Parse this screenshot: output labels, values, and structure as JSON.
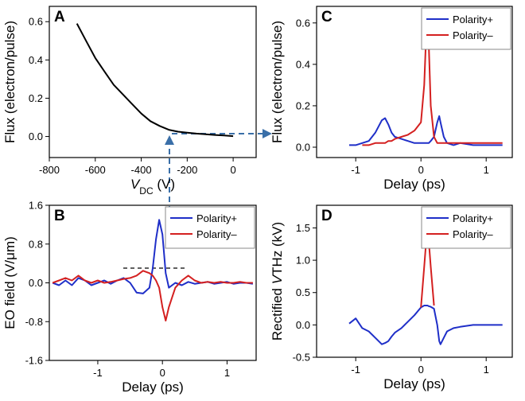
{
  "chart_data": [
    {
      "type": "line",
      "panel_label": "A",
      "ylabel": "Flux (electron/pulse)",
      "xlabel": {
        "italic": "V",
        "sub": "DC",
        "rest": " (V)"
      },
      "x": [
        -680,
        -640,
        -600,
        -560,
        -520,
        -480,
        -440,
        -400,
        -360,
        -320,
        -280,
        -240,
        -200,
        -160,
        -120,
        -80,
        -40,
        0
      ],
      "series": [
        {
          "color": "#000000",
          "values": [
            0.59,
            0.5,
            0.41,
            0.34,
            0.27,
            0.22,
            0.17,
            0.12,
            0.08,
            0.055,
            0.035,
            0.025,
            0.02,
            0.015,
            0.012,
            0.008,
            0.005,
            0.002
          ]
        }
      ],
      "xlim": [
        -800,
        100
      ],
      "ylim": [
        -0.11,
        0.68
      ],
      "xticks": [
        -800,
        -600,
        -400,
        -200,
        0
      ],
      "yticks": [
        {
          "value": 0,
          "label": "0.0"
        },
        0.2,
        0.4,
        0.6
      ]
    },
    {
      "type": "line",
      "panel_label": "B",
      "ylabel": "EO field (V/μm)",
      "xlabel": "Delay (ps)",
      "x": [
        -1.7,
        -1.6,
        -1.5,
        -1.4,
        -1.3,
        -1.2,
        -1.1,
        -1.0,
        -0.9,
        -0.8,
        -0.7,
        -0.6,
        -0.5,
        -0.4,
        -0.3,
        -0.2,
        -0.15,
        -0.1,
        -0.05,
        0,
        0.05,
        0.1,
        0.2,
        0.3,
        0.4,
        0.5,
        0.6,
        0.7,
        0.8,
        0.9,
        1.0,
        1.1,
        1.2,
        1.3,
        1.4
      ],
      "series": [
        {
          "name": "Polarity+",
          "color": "#1f2fc8",
          "values": [
            0.0,
            -0.05,
            0.05,
            -0.05,
            0.1,
            0.05,
            -0.05,
            0.0,
            0.05,
            -0.02,
            0.05,
            0.1,
            0.0,
            -0.2,
            -0.22,
            -0.1,
            0.3,
            0.9,
            1.3,
            1.0,
            0.2,
            -0.1,
            0.0,
            -0.05,
            0.02,
            -0.02,
            0.0,
            0.02,
            -0.02,
            0.0,
            0.02,
            -0.02,
            0.0,
            0.0,
            -0.02
          ]
        },
        {
          "name": "Polarity–",
          "color": "#d42020",
          "values": [
            0.0,
            0.05,
            0.1,
            0.05,
            0.15,
            0.05,
            0.0,
            0.05,
            0.0,
            0.02,
            0.05,
            0.08,
            0.1,
            0.15,
            0.25,
            0.2,
            0.15,
            0.05,
            -0.1,
            -0.5,
            -0.78,
            -0.5,
            -0.1,
            0.05,
            0.15,
            0.05,
            0.0,
            0.02,
            0.0,
            0.02,
            0.0,
            0.0,
            0.02,
            0.0,
            0.0
          ]
        }
      ],
      "xlim": [
        -1.75,
        1.45
      ],
      "ylim": [
        -1.6,
        1.6
      ],
      "xticks": [
        -1,
        0,
        1
      ],
      "yticks": [
        -1.6,
        -0.8,
        {
          "value": 0,
          "label": "0.0"
        },
        0.8,
        1.6
      ],
      "legend": "upper right"
    },
    {
      "type": "line",
      "panel_label": "C",
      "ylabel": "Flux (electron/pulse)",
      "xlabel": "Delay (ps)",
      "x": [
        -1.1,
        -1.0,
        -0.9,
        -0.8,
        -0.7,
        -0.6,
        -0.55,
        -0.5,
        -0.45,
        -0.4,
        -0.3,
        -0.2,
        -0.1,
        0,
        0.05,
        0.08,
        0.1,
        0.12,
        0.15,
        0.2,
        0.25,
        0.28,
        0.3,
        0.35,
        0.4,
        0.5,
        0.6,
        0.8,
        1.0,
        1.25
      ],
      "series": [
        {
          "name": "Polarity+",
          "color": "#1f2fc8",
          "values": [
            0.01,
            0.01,
            0.02,
            0.03,
            0.07,
            0.13,
            0.14,
            0.11,
            0.07,
            0.05,
            0.04,
            0.03,
            0.02,
            0.02,
            0.02,
            0.02,
            0.02,
            0.02,
            0.03,
            0.05,
            0.12,
            0.15,
            0.12,
            0.05,
            0.02,
            0.01,
            0.02,
            0.01,
            0.01,
            0.01
          ]
        },
        {
          "name": "Polarity–",
          "color": "#d42020",
          "values": [
            null,
            null,
            0.01,
            0.01,
            0.02,
            0.02,
            0.02,
            0.03,
            0.03,
            0.04,
            0.05,
            0.06,
            0.08,
            0.12,
            0.3,
            0.55,
            0.6,
            0.5,
            0.2,
            0.05,
            0.02,
            0.02,
            0.02,
            0.02,
            0.02,
            0.02,
            0.02,
            0.02,
            0.02,
            0.02
          ]
        }
      ],
      "xlim": [
        -1.6,
        1.4
      ],
      "ylim": [
        -0.05,
        0.68
      ],
      "xticks": [
        -1,
        0,
        1
      ],
      "yticks": [
        {
          "value": 0,
          "label": "0.0"
        },
        0.2,
        0.4,
        0.6
      ],
      "legend": "upper right"
    },
    {
      "type": "line",
      "panel_label": "D",
      "ylabel": {
        "text": "Rectified ",
        "italic": "V",
        "rest": "THz (kV)"
      },
      "xlabel": "Delay (ps)",
      "x": [
        -1.1,
        -1.0,
        -0.9,
        -0.8,
        -0.7,
        -0.6,
        -0.55,
        -0.5,
        -0.45,
        -0.4,
        -0.3,
        -0.2,
        -0.1,
        0,
        0.05,
        0.08,
        0.1,
        0.12,
        0.15,
        0.2,
        0.25,
        0.28,
        0.3,
        0.35,
        0.4,
        0.5,
        0.6,
        0.8,
        1.0,
        1.25
      ],
      "series": [
        {
          "name": "Polarity+",
          "color": "#1f2fc8",
          "values": [
            0.02,
            0.1,
            -0.05,
            -0.1,
            -0.2,
            -0.3,
            -0.28,
            -0.25,
            -0.18,
            -0.12,
            -0.05,
            0.05,
            0.15,
            0.27,
            0.3,
            0.3,
            0.3,
            0.29,
            0.28,
            0.25,
            0.0,
            -0.25,
            -0.3,
            -0.2,
            -0.1,
            -0.05,
            -0.03,
            0.0,
            0.0,
            0.0
          ]
        },
        {
          "name": "Polarity–",
          "color": "#d42020",
          "values": [
            null,
            null,
            null,
            null,
            null,
            null,
            null,
            null,
            null,
            null,
            null,
            null,
            null,
            0.27,
            0.9,
            1.3,
            1.45,
            1.3,
            0.9,
            0.3,
            null,
            null,
            null,
            null,
            null,
            null,
            null,
            null,
            null,
            null
          ]
        }
      ],
      "xlim": [
        -1.6,
        1.4
      ],
      "ylim": [
        -0.5,
        1.85
      ],
      "xticks": [
        -1,
        0,
        1
      ],
      "yticks": [
        -0.5,
        {
          "value": 0,
          "label": "0.0"
        },
        0.5,
        {
          "value": 1,
          "label": "1.0"
        },
        1.5
      ],
      "legend": "upper right"
    }
  ]
}
